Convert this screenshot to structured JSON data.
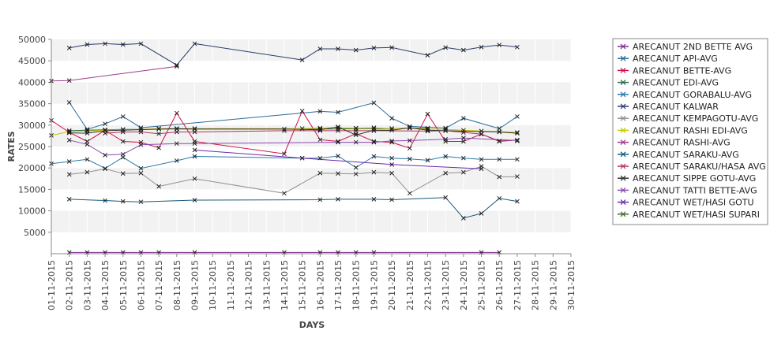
{
  "chart_data": {
    "type": "line",
    "xlabel": "DAYS",
    "ylabel": "RATES",
    "ylim": [
      0,
      50000
    ],
    "yticks": [
      5000,
      10000,
      15000,
      20000,
      25000,
      30000,
      35000,
      40000,
      45000,
      50000
    ],
    "grid": "alternating horizontal bands",
    "legend_position": "right",
    "categories": [
      "01-11-2015",
      "02-11-2015",
      "03-11-2015",
      "04-11-2015",
      "05-11-2015",
      "06-11-2015",
      "07-11-2015",
      "08-11-2015",
      "09-11-2015",
      "10-11-2015",
      "11-11-2015",
      "12-11-2015",
      "13-11-2015",
      "14-11-2015",
      "15-11-2015",
      "16-11-2015",
      "17-11-2015",
      "18-11-2015",
      "19-11-2015",
      "20-11-2015",
      "21-11-2015",
      "22-11-2015",
      "23-11-2015",
      "24-11-2015",
      "25-11-2015",
      "26-11-2015",
      "27-11-2015",
      "28-11-2015",
      "29-11-2015",
      "30-11-2015"
    ],
    "series": [
      {
        "name": "ARECANUT 2ND BETTE AVG",
        "color": "#7a2a8a",
        "values": [
          null,
          300,
          300,
          300,
          300,
          300,
          300,
          null,
          300,
          null,
          null,
          null,
          null,
          300,
          null,
          300,
          300,
          300,
          300,
          null,
          null,
          null,
          null,
          null,
          300,
          300,
          null,
          null,
          null,
          null
        ]
      },
      {
        "name": "ARECANUT API-AVG",
        "color": "#2a6a9a",
        "values": [
          null,
          35300,
          29000,
          30300,
          32000,
          29400,
          null,
          null,
          null,
          null,
          null,
          null,
          null,
          null,
          null,
          33200,
          33000,
          null,
          35200,
          31600,
          29700,
          null,
          29300,
          31600,
          null,
          29200,
          32000,
          null,
          null,
          null
        ]
      },
      {
        "name": "ARECANUT BETTE-AVG",
        "color": "#d0104a",
        "values": [
          31100,
          28300,
          26200,
          28800,
          26200,
          26000,
          24700,
          32800,
          26200,
          null,
          null,
          null,
          null,
          23300,
          33300,
          26600,
          26200,
          28000,
          26200,
          26000,
          24600,
          32600,
          26200,
          26200,
          27900,
          26200,
          26500,
          null,
          null,
          null
        ]
      },
      {
        "name": "ARECANUT EDI-AVG",
        "color": "#2a6a4a",
        "values": [
          null,
          28700,
          28800,
          28900,
          29000,
          29000,
          29100,
          29100,
          29100,
          null,
          null,
          null,
          null,
          null,
          null,
          29100,
          29100,
          29200,
          29200,
          29200,
          29300,
          29300,
          null,
          null,
          null,
          null,
          null,
          null,
          null,
          null
        ]
      },
      {
        "name": "ARECANUT GORABALU-AVG",
        "color": "#2a7aaa",
        "values": [
          21000,
          21500,
          22000,
          19900,
          22500,
          19900,
          null,
          21700,
          22700,
          null,
          null,
          null,
          null,
          null,
          22300,
          22300,
          22800,
          20100,
          22700,
          22300,
          22100,
          21800,
          22700,
          22300,
          22000,
          22000,
          22000,
          null,
          null,
          null
        ]
      },
      {
        "name": "ARECANUT KALWAR",
        "color": "#2a3a6a",
        "values": [
          null,
          48000,
          48800,
          49000,
          48800,
          49000,
          null,
          44000,
          49000,
          null,
          null,
          null,
          null,
          null,
          45200,
          47800,
          47800,
          47500,
          48000,
          48100,
          null,
          46300,
          48100,
          47500,
          48200,
          48700,
          48200,
          null,
          null,
          null
        ]
      },
      {
        "name": "ARECANUT KEMPAGOTU-AVG",
        "color": "#909090",
        "values": [
          null,
          18500,
          19000,
          19800,
          18700,
          18800,
          15700,
          null,
          17500,
          null,
          null,
          null,
          null,
          14100,
          null,
          18800,
          18700,
          18600,
          19000,
          18800,
          14100,
          null,
          18800,
          19000,
          20400,
          17900,
          18000,
          null,
          null,
          null
        ]
      },
      {
        "name": "ARECANUT RASHI EDI-AVG",
        "color": "#c8c800",
        "values": [
          27600,
          28500,
          28600,
          28800,
          28900,
          29000,
          29200,
          29200,
          29200,
          null,
          null,
          null,
          null,
          null,
          29200,
          29300,
          29400,
          29300,
          29400,
          29200,
          29300,
          29100,
          29000,
          28800,
          28600,
          28500,
          28300,
          null,
          null,
          null
        ]
      },
      {
        "name": "ARECANUT RASHI-AVG",
        "color": "#a03a8a",
        "values": [
          40300,
          40400,
          null,
          null,
          null,
          null,
          null,
          43700,
          null,
          null,
          null,
          null,
          null,
          null,
          null,
          null,
          null,
          null,
          null,
          null,
          null,
          null,
          null,
          null,
          null,
          null,
          null,
          null,
          null,
          null
        ]
      },
      {
        "name": "ARECANUT SARAKU-AVG",
        "color": "#1a5a7a",
        "values": [
          null,
          12700,
          null,
          12400,
          12200,
          12100,
          null,
          null,
          12500,
          null,
          null,
          null,
          null,
          null,
          null,
          12600,
          12700,
          null,
          12700,
          12600,
          null,
          null,
          13100,
          8300,
          9400,
          12900,
          12200,
          null,
          null,
          null
        ]
      },
      {
        "name": "ARECANUT SARAKU/HASA AVG",
        "color": "#b03060",
        "values": [
          null,
          null,
          null,
          28100,
          28400,
          28400,
          28000,
          28400,
          28400,
          null,
          null,
          null,
          null,
          28700,
          null,
          28700,
          28700,
          28700,
          28700,
          null,
          null,
          28600,
          28700,
          28300,
          27900,
          26300,
          26500,
          null,
          null,
          null
        ]
      },
      {
        "name": "ARECANUT SIPPE GOTU-AVG",
        "color": "#333333",
        "values": [
          null,
          28200,
          28100,
          28700,
          null,
          null,
          null,
          29200,
          29100,
          null,
          null,
          null,
          null,
          29100,
          null,
          28900,
          29600,
          27700,
          28800,
          28800,
          29400,
          28800,
          28700,
          null,
          null,
          28400,
          28100,
          null,
          null,
          null
        ]
      },
      {
        "name": "ARECANUT TATTI BETTE-AVG",
        "color": "#8a4ab0",
        "values": [
          null,
          26500,
          25500,
          23000,
          23200,
          25400,
          null,
          25700,
          25700,
          null,
          null,
          null,
          null,
          null,
          null,
          null,
          26000,
          26000,
          26000,
          26300,
          26400,
          null,
          26700,
          27000,
          null,
          null,
          26400,
          null,
          null,
          null
        ]
      },
      {
        "name": "ARECANUT WET/HASI GOTU",
        "color": "#6a2aaa",
        "values": [
          null,
          null,
          null,
          null,
          null,
          null,
          null,
          null,
          24200,
          null,
          null,
          null,
          null,
          null,
          22300,
          null,
          null,
          null,
          null,
          20800,
          null,
          null,
          null,
          null,
          19800,
          null,
          null,
          null,
          null,
          null
        ]
      },
      {
        "name": "ARECANUT WET/HASI SUPARI",
        "color": "#4a6a2a",
        "values": [
          null,
          null,
          null,
          null,
          null,
          null,
          null,
          null,
          null,
          null,
          null,
          null,
          null,
          null,
          null,
          null,
          null,
          null,
          null,
          null,
          null,
          null,
          null,
          null,
          null,
          null,
          26300,
          null,
          null,
          null
        ]
      }
    ]
  }
}
